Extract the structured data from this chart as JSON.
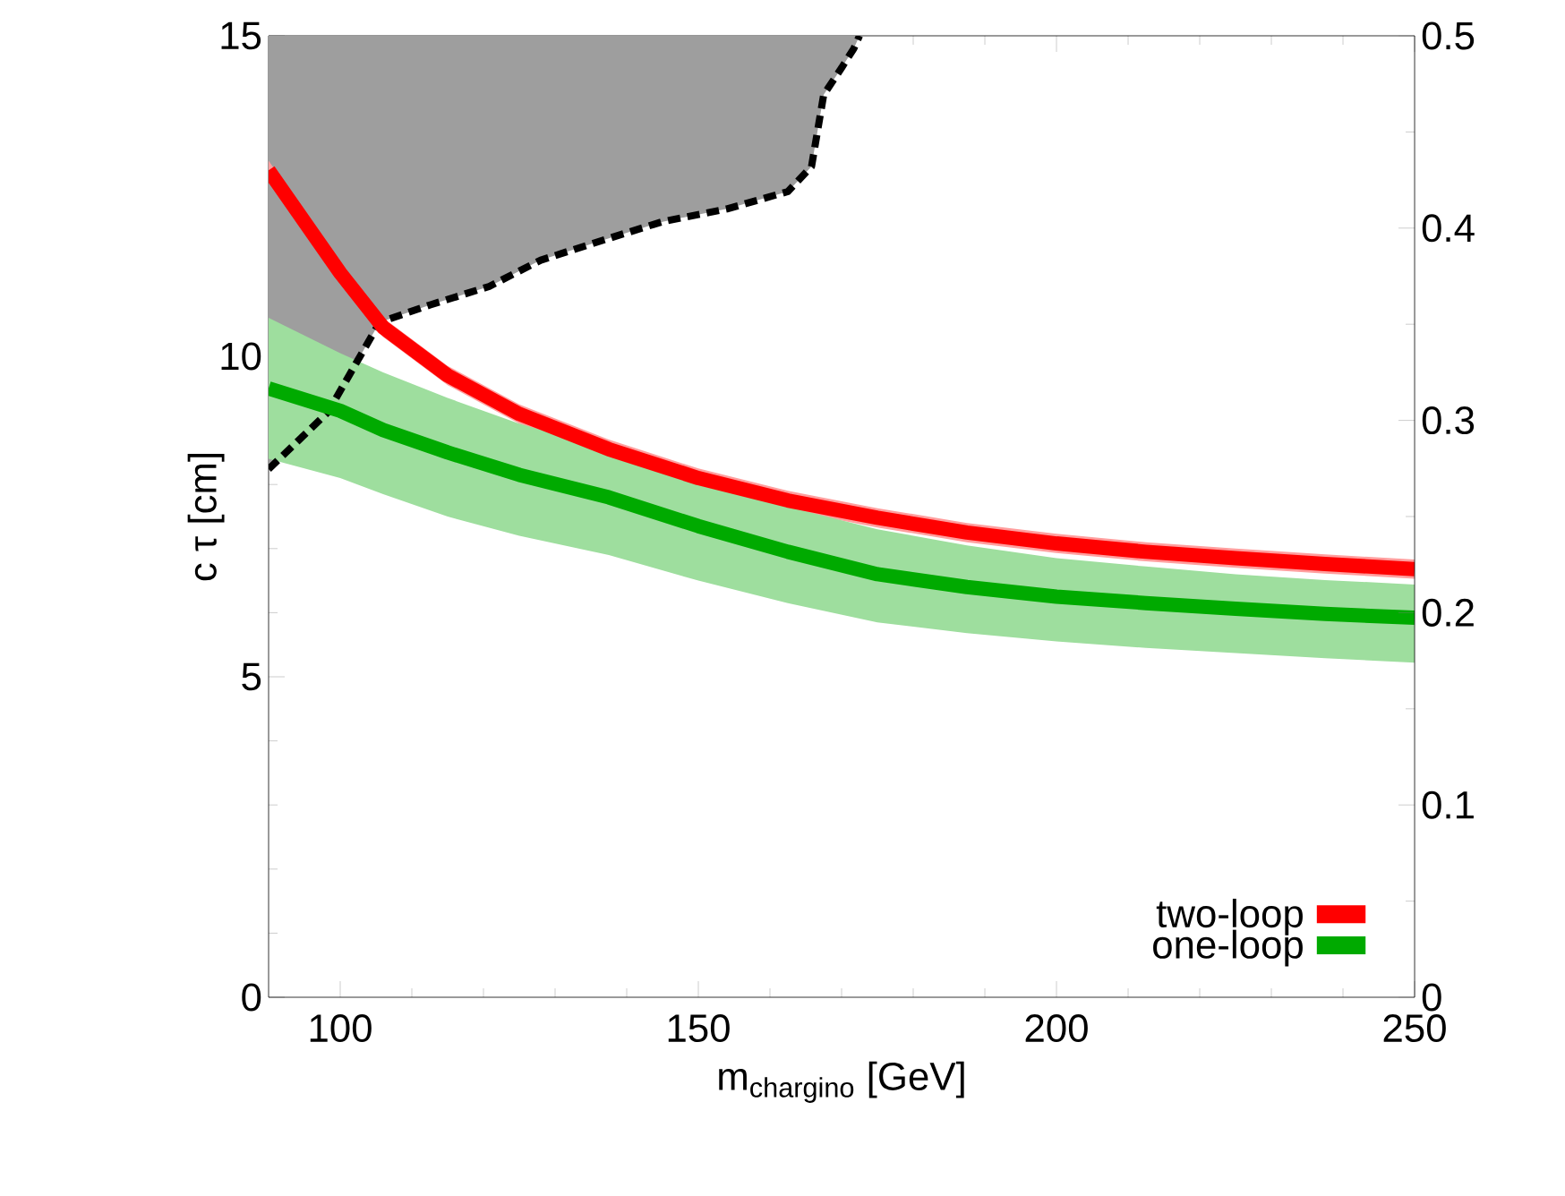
{
  "chart_data": {
    "type": "line",
    "xlabel": "m$_{chargino}$ [GeV]",
    "ylabel": "c τ [cm]",
    "xlim": [
      90,
      250
    ],
    "xticks": [
      100,
      150,
      200,
      250
    ],
    "ylim": [
      0,
      15
    ],
    "yticks": [
      0,
      5,
      10,
      15
    ],
    "y2lim": [
      0,
      0.5
    ],
    "y2ticks": [
      0,
      0.1,
      0.2,
      0.3,
      0.4,
      0.5
    ],
    "legend": "bottom right",
    "series": [
      {
        "type": "line",
        "color": "#000000",
        "line_style": "dashed",
        "x": [
          90,
          98.3,
          105.5,
          112.5,
          120.8,
          128,
          137.5,
          145,
          154,
          162.5,
          165.8,
          167.5,
          170,
          171.7,
          172.5
        ],
        "values": [
          8.24,
          9.13,
          10.53,
          10.8,
          11.09,
          11.5,
          11.84,
          12.1,
          12.3,
          12.57,
          12.96,
          14.08,
          14.5,
          14.8,
          15
        ],
        "lower": [
          8.24,
          9.13,
          10.53,
          10.8,
          11.09,
          11.5,
          11.84,
          12.1,
          12.3,
          12.57,
          12.96,
          14.08,
          14.5,
          14.8,
          15
        ],
        "upper": [
          15,
          15,
          15,
          15,
          15,
          15,
          15,
          15,
          15,
          15,
          15,
          15,
          15,
          15,
          15
        ]
      },
      {
        "name": "two-loop",
        "color": "#ff0000",
        "x": [
          90,
          100,
          106,
          115,
          125,
          137.5,
          150,
          162.5,
          175,
          187.5,
          200,
          212.5,
          225,
          237.5,
          250
        ],
        "values": [
          12.9,
          11.3,
          10.45,
          9.7,
          9.1,
          8.55,
          8.1,
          7.75,
          7.48,
          7.25,
          7.08,
          6.95,
          6.85,
          6.76,
          6.68
        ],
        "lower": [
          12.75,
          11.15,
          10.3,
          9.55,
          8.95,
          8.4,
          7.95,
          7.6,
          7.33,
          7.1,
          6.93,
          6.8,
          6.7,
          6.61,
          6.53
        ],
        "upper": [
          13.05,
          11.45,
          10.6,
          9.85,
          9.25,
          8.7,
          8.25,
          7.9,
          7.63,
          7.4,
          7.23,
          7.1,
          7.0,
          6.91,
          6.83
        ]
      },
      {
        "name": "one-loop",
        "color": "#00aa00",
        "x": [
          90,
          100,
          106,
          115,
          125,
          137.5,
          150,
          162.5,
          175,
          187.5,
          200,
          212.5,
          225,
          237.5,
          250
        ],
        "values": [
          9.5,
          9.15,
          8.85,
          8.5,
          8.15,
          7.8,
          7.35,
          6.95,
          6.6,
          6.4,
          6.25,
          6.15,
          6.06,
          5.98,
          5.92
        ],
        "lower": [
          8.4,
          8.1,
          7.85,
          7.5,
          7.2,
          6.9,
          6.5,
          6.15,
          5.85,
          5.68,
          5.55,
          5.45,
          5.37,
          5.29,
          5.22
        ],
        "upper": [
          10.6,
          10.05,
          9.75,
          9.35,
          8.95,
          8.55,
          8.1,
          7.65,
          7.3,
          7.05,
          6.85,
          6.72,
          6.6,
          6.51,
          6.44
        ]
      }
    ]
  }
}
